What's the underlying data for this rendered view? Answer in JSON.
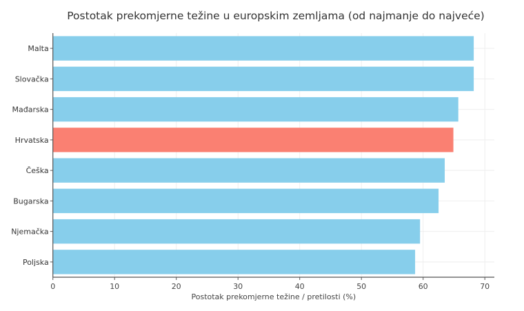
{
  "chart_data": {
    "type": "bar",
    "orientation": "horizontal",
    "title": "Postotak prekomjerne težine u europskim zemljama (od najmanje do najveće)",
    "xlabel": "Postotak prekomjerne težine / pretilosti (%)",
    "ylabel": "",
    "categories": [
      "Malta",
      "Slovačka",
      "Mađarska",
      "Hrvatska",
      "Češka",
      "Bugarska",
      "Njemačka",
      "Poljska"
    ],
    "values": [
      68.2,
      68.2,
      65.7,
      64.9,
      63.5,
      62.5,
      59.5,
      58.7
    ],
    "xlim": [
      0,
      71
    ],
    "xticks": [
      0,
      10,
      20,
      30,
      40,
      50,
      60,
      70
    ],
    "grid": true,
    "colors": {
      "default": "#87CEEB",
      "highlight": "#FA8072"
    },
    "highlight": "Hrvatska"
  }
}
